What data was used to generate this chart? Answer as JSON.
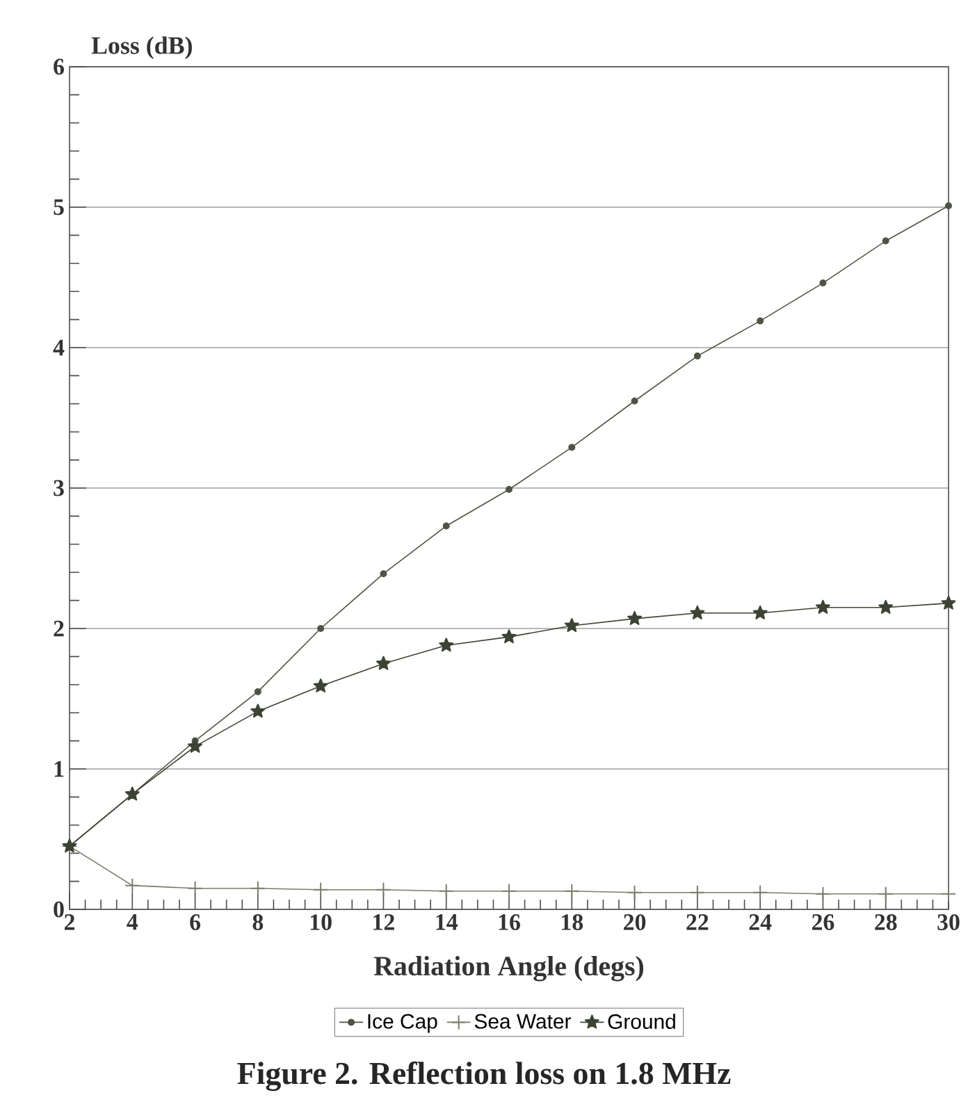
{
  "chart_data": {
    "type": "line",
    "title": "Figure 2. Reflection loss on 1.8 MHz",
    "xlabel": "Radiation Angle (degs)",
    "ylabel": "Loss (dB)",
    "x": [
      2,
      4,
      6,
      8,
      10,
      12,
      14,
      16,
      18,
      20,
      22,
      24,
      26,
      28,
      30
    ],
    "series": [
      {
        "name": "Ice Cap",
        "color": "#4f5544",
        "marker": "circle",
        "values": [
          0.45,
          0.82,
          1.2,
          1.55,
          2.0,
          2.39,
          2.73,
          2.99,
          3.29,
          3.62,
          3.94,
          4.19,
          4.46,
          4.76,
          5.01
        ]
      },
      {
        "name": "Sea Water",
        "color": "#7a7d6c",
        "marker": "cross",
        "values": [
          0.45,
          0.17,
          0.15,
          0.15,
          0.14,
          0.14,
          0.13,
          0.13,
          0.13,
          0.12,
          0.12,
          0.12,
          0.11,
          0.11,
          0.11
        ]
      },
      {
        "name": "Ground",
        "color": "#3d4334",
        "marker": "star",
        "values": [
          0.45,
          0.82,
          1.16,
          1.41,
          1.59,
          1.75,
          1.88,
          1.94,
          2.02,
          2.07,
          2.11,
          2.11,
          2.15,
          2.15,
          2.18
        ]
      }
    ],
    "xlim": [
      2,
      30
    ],
    "ylim": [
      0,
      6
    ],
    "xticks": [
      2,
      4,
      6,
      8,
      10,
      12,
      14,
      16,
      18,
      20,
      22,
      24,
      26,
      28,
      30
    ],
    "yticks": [
      0,
      1,
      2,
      3,
      4,
      5,
      6
    ],
    "grid": "y",
    "legend": "bottom",
    "line_style": "solid"
  }
}
